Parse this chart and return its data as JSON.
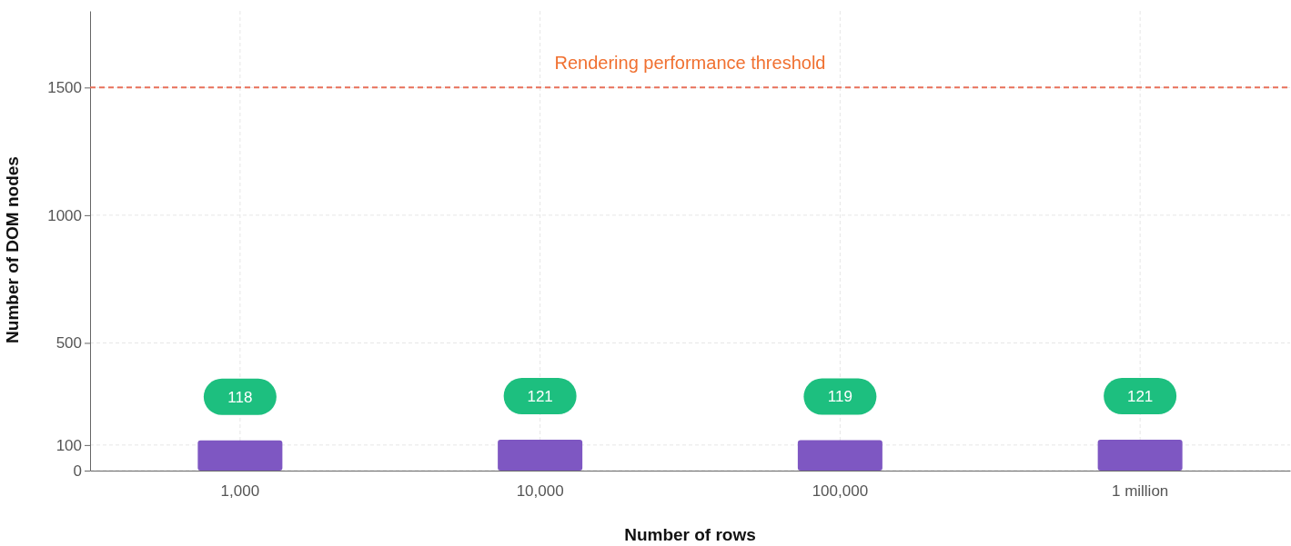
{
  "chart_data": {
    "type": "bar",
    "xlabel": "Number of rows",
    "ylabel": "Number of DOM nodes",
    "categories": [
      "1,000",
      "10,000",
      "100,000",
      "1 million"
    ],
    "values": [
      118,
      121,
      119,
      121
    ],
    "color": "#7e57c2",
    "data_labels": true,
    "ylim": [
      0,
      1800
    ],
    "yticks": [
      0,
      100,
      500,
      1000,
      1500
    ],
    "grid": true,
    "ref_lines": [
      {
        "axis": "y",
        "value": 1500,
        "label": "Rendering performance threshold",
        "color": "#e8705a",
        "line_style": "dashed"
      }
    ]
  }
}
